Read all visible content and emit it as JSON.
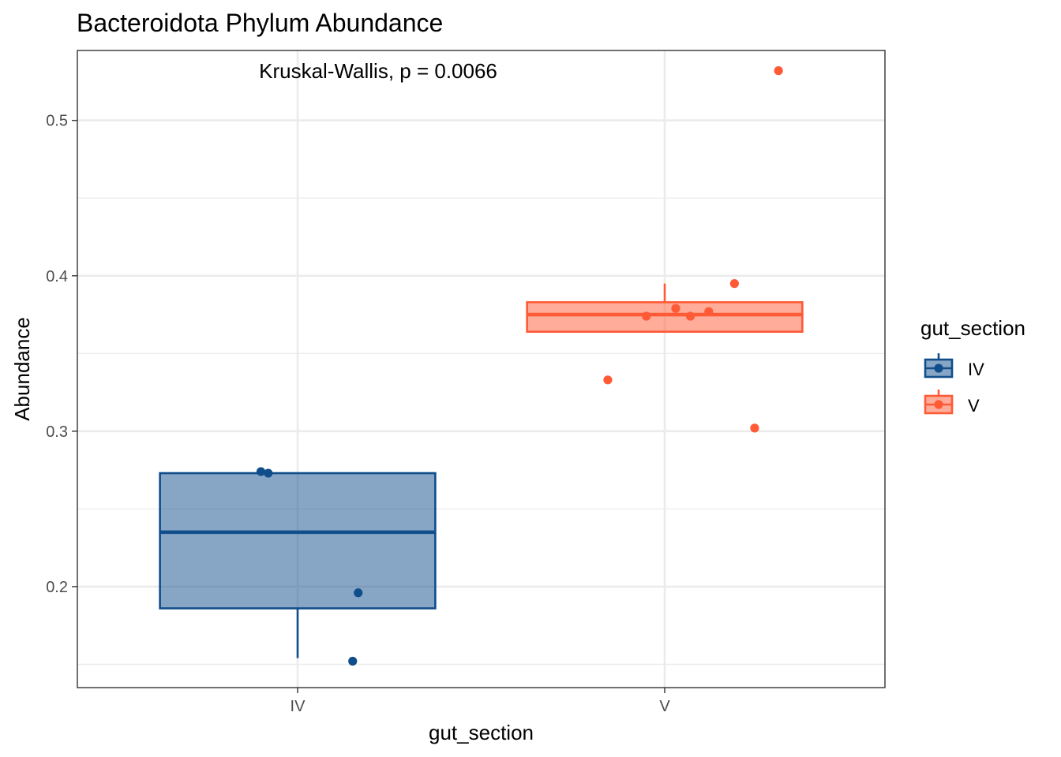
{
  "chart_data": {
    "type": "boxplot",
    "title": "Bacteroidota Phylum Abundance",
    "annotation": "Kruskal-Wallis, p = 0.0066",
    "xlabel": "gut_section",
    "ylabel": "Abundance",
    "categories": [
      "IV",
      "V"
    ],
    "ylim": [
      0.135,
      0.545
    ],
    "y_ticks": [
      0.2,
      0.3,
      0.4,
      0.5
    ],
    "y_tick_labels": [
      "0.2",
      "0.3",
      "0.4",
      "0.5"
    ],
    "grid": true,
    "legend": {
      "title": "gut_section",
      "position": "right",
      "entries": [
        "IV",
        "V"
      ]
    },
    "colors": {
      "IV": "#104E8B",
      "V": "#FF5A36"
    },
    "boxes": [
      {
        "category": "IV",
        "q1": 0.186,
        "median": 0.235,
        "q3": 0.273,
        "whisker_low": 0.154,
        "whisker_high": 0.273
      },
      {
        "category": "V",
        "q1": 0.364,
        "median": 0.375,
        "q3": 0.383,
        "whisker_low": 0.364,
        "whisker_high": 0.395
      }
    ],
    "points": [
      {
        "category": "IV",
        "jitter": -0.1,
        "y": 0.274
      },
      {
        "category": "IV",
        "jitter": -0.08,
        "y": 0.273
      },
      {
        "category": "IV",
        "jitter": 0.165,
        "y": 0.196
      },
      {
        "category": "IV",
        "jitter": 0.15,
        "y": 0.152
      },
      {
        "category": "V",
        "jitter": -0.05,
        "y": 0.374
      },
      {
        "category": "V",
        "jitter": 0.03,
        "y": 0.379
      },
      {
        "category": "V",
        "jitter": 0.07,
        "y": 0.374
      },
      {
        "category": "V",
        "jitter": 0.12,
        "y": 0.377
      },
      {
        "category": "V",
        "jitter": 0.19,
        "y": 0.395
      },
      {
        "category": "V",
        "jitter": -0.155,
        "y": 0.333
      },
      {
        "category": "V",
        "jitter": 0.245,
        "y": 0.302
      },
      {
        "category": "V",
        "jitter": 0.31,
        "y": 0.532
      }
    ]
  }
}
